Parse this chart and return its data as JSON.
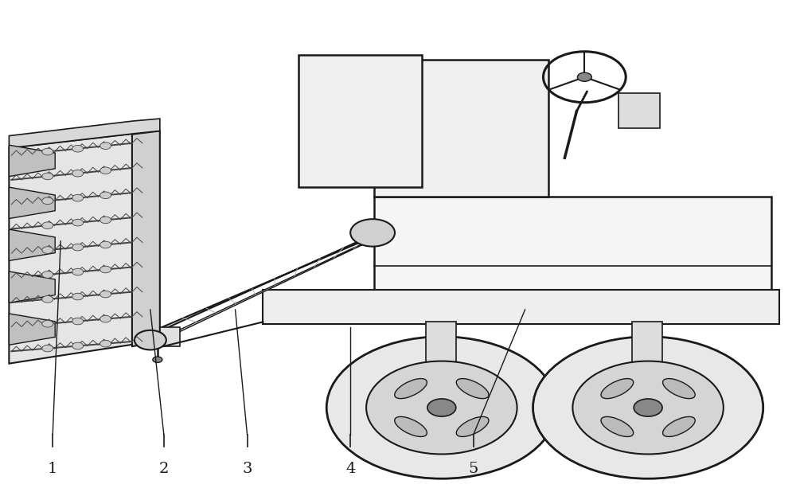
{
  "background_color": "#ffffff",
  "figure_width": 10.0,
  "figure_height": 6.18,
  "dpi": 100,
  "label_fontsize": 14,
  "label_color": "#1a1a1a",
  "line_color": "#1a1a1a"
}
